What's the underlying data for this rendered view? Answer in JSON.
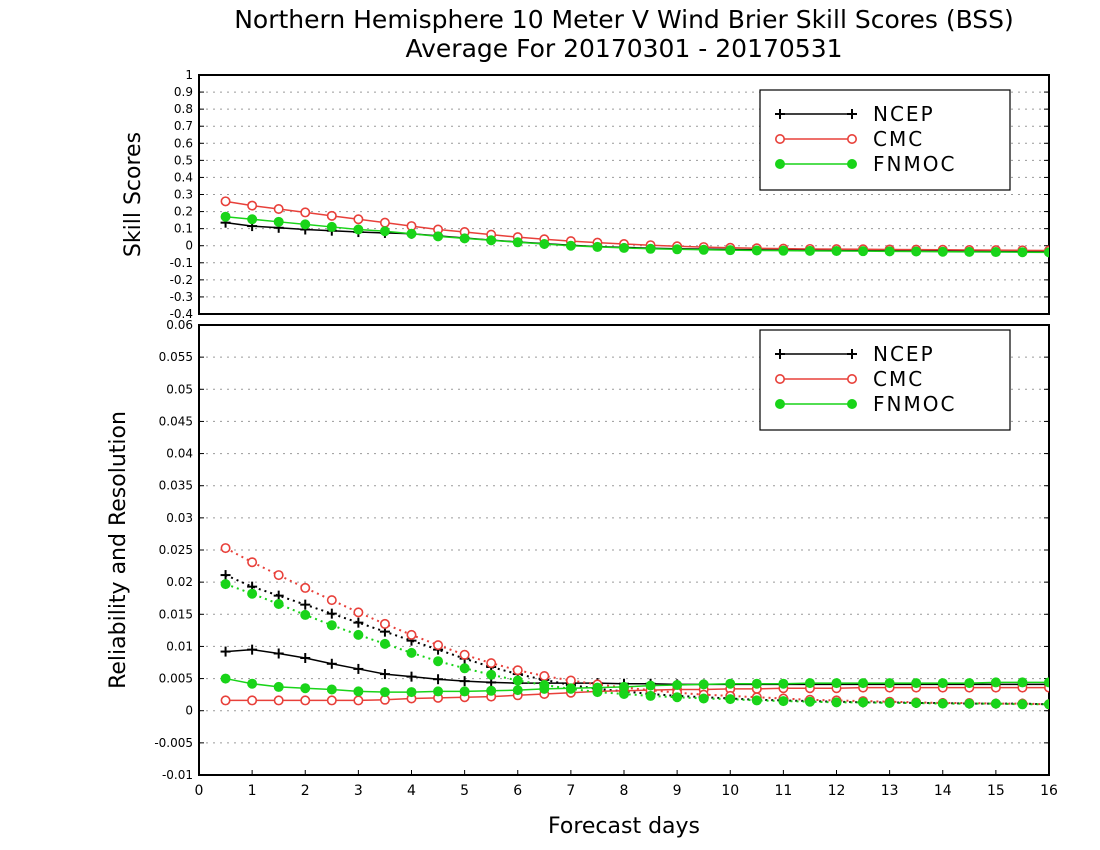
{
  "title_line1": "Northern Hemisphere 10 Meter V Wind Brier Skill Scores (BSS)",
  "title_line2": "Average For 20170301 - 20170531",
  "colors": {
    "ncep": "#000000",
    "cmc": "#e8403a",
    "fnmoc": "#19d419"
  },
  "chart_data": [
    {
      "type": "line",
      "ylabel": "Skill Scores",
      "xlabel": "",
      "xlim": [
        0,
        16
      ],
      "ylim": [
        -0.4,
        1
      ],
      "y_ticks": [
        -0.4,
        -0.3,
        -0.2,
        -0.1,
        0,
        0.1,
        0.2,
        0.3,
        0.4,
        0.5,
        0.6,
        0.7,
        0.8,
        0.9,
        1
      ],
      "y_tick_labels": [
        "-0.4",
        "-0.3",
        "-0.2",
        "-0.1",
        "0",
        "0.1",
        "0.2",
        "0.3",
        "0.4",
        "0.5",
        "0.6",
        "0.7",
        "0.8",
        "0.9",
        "1"
      ],
      "grid": true,
      "legend": {
        "placement": "top-right",
        "entries": [
          "NCEP",
          "CMC",
          "FNMOC"
        ]
      },
      "x": [
        0.5,
        1,
        1.5,
        2,
        2.5,
        3,
        3.5,
        4,
        4.5,
        5,
        5.5,
        6,
        6.5,
        7,
        7.5,
        8,
        8.5,
        9,
        9.5,
        10,
        10.5,
        11,
        11.5,
        12,
        12.5,
        13,
        13.5,
        14,
        14.5,
        15,
        15.5,
        16
      ],
      "series": [
        {
          "name": "NCEP",
          "color_key": "ncep",
          "marker": "plus",
          "style": "solid",
          "values": [
            0.135,
            0.115,
            0.105,
            0.095,
            0.088,
            0.08,
            0.075,
            0.07,
            0.058,
            0.045,
            0.033,
            0.022,
            0.012,
            0.003,
            -0.005,
            -0.01,
            -0.015,
            -0.018,
            -0.02,
            -0.022,
            -0.024,
            -0.025,
            -0.026,
            -0.027,
            -0.028,
            -0.029,
            -0.03,
            -0.031,
            -0.032,
            -0.033,
            -0.034,
            -0.035
          ]
        },
        {
          "name": "CMC",
          "color_key": "cmc",
          "marker": "open-circle",
          "style": "solid",
          "values": [
            0.26,
            0.235,
            0.215,
            0.195,
            0.175,
            0.155,
            0.135,
            0.115,
            0.095,
            0.08,
            0.065,
            0.05,
            0.038,
            0.027,
            0.018,
            0.01,
            0.003,
            -0.003,
            -0.008,
            -0.012,
            -0.015,
            -0.017,
            -0.019,
            -0.02,
            -0.021,
            -0.022,
            -0.023,
            -0.024,
            -0.025,
            -0.026,
            -0.027,
            -0.028
          ]
        },
        {
          "name": "FNMOC",
          "color_key": "fnmoc",
          "marker": "filled-circle",
          "style": "solid",
          "values": [
            0.17,
            0.155,
            0.14,
            0.125,
            0.11,
            0.095,
            0.085,
            0.07,
            0.055,
            0.043,
            0.032,
            0.02,
            0.01,
            0.0,
            -0.007,
            -0.013,
            -0.018,
            -0.021,
            -0.024,
            -0.026,
            -0.028,
            -0.029,
            -0.03,
            -0.031,
            -0.032,
            -0.033,
            -0.034,
            -0.035,
            -0.036,
            -0.037,
            -0.038,
            -0.039
          ]
        }
      ]
    },
    {
      "type": "line",
      "ylabel": "Reliability and Resolution",
      "xlabel": "Forecast days",
      "xlim": [
        0,
        16
      ],
      "ylim": [
        -0.01,
        0.06
      ],
      "y_ticks": [
        -0.01,
        -0.005,
        0,
        0.005,
        0.01,
        0.015,
        0.02,
        0.025,
        0.03,
        0.035,
        0.04,
        0.045,
        0.05,
        0.055,
        0.06
      ],
      "y_tick_labels": [
        "-0.01",
        "-0.005",
        "0",
        "0.005",
        "0.01",
        "0.015",
        "0.02",
        "0.025",
        "0.03",
        "0.035",
        "0.04",
        "0.045",
        "0.05",
        "0.055",
        "0.06"
      ],
      "x_ticks": [
        0,
        1,
        2,
        3,
        4,
        5,
        6,
        7,
        8,
        9,
        10,
        11,
        12,
        13,
        14,
        15,
        16
      ],
      "x_tick_labels": [
        "0",
        "1",
        "2",
        "3",
        "4",
        "5",
        "6",
        "7",
        "8",
        "9",
        "10",
        "11",
        "12",
        "13",
        "14",
        "15",
        "16"
      ],
      "grid": true,
      "legend": {
        "placement": "top-right",
        "entries": [
          "NCEP",
          "CMC",
          "FNMOC"
        ]
      },
      "x": [
        0.5,
        1,
        1.5,
        2,
        2.5,
        3,
        3.5,
        4,
        4.5,
        5,
        5.5,
        6,
        6.5,
        7,
        7.5,
        8,
        8.5,
        9,
        9.5,
        10,
        10.5,
        11,
        11.5,
        12,
        12.5,
        13,
        13.5,
        14,
        14.5,
        15,
        15.5,
        16
      ],
      "series": [
        {
          "name": "NCEP",
          "color_key": "ncep",
          "marker": "plus",
          "style": "solid",
          "values": [
            0.0092,
            0.0095,
            0.0089,
            0.0082,
            0.0073,
            0.0065,
            0.0057,
            0.0053,
            0.0049,
            0.0046,
            0.0044,
            0.0043,
            0.0043,
            0.0043,
            0.0043,
            0.0042,
            0.0042,
            0.0041,
            0.0041,
            0.0041,
            0.0041,
            0.0041,
            0.0041,
            0.0041,
            0.0041,
            0.0041,
            0.0041,
            0.0041,
            0.0041,
            0.0041,
            0.0041,
            0.0041
          ]
        },
        {
          "name": "NCEP",
          "color_key": "ncep",
          "marker": "plus",
          "style": "dotted",
          "values": [
            0.0211,
            0.0193,
            0.0179,
            0.0165,
            0.0151,
            0.0137,
            0.0123,
            0.0109,
            0.0095,
            0.0081,
            0.0068,
            0.0057,
            0.0048,
            0.004,
            0.0034,
            0.003,
            0.0026,
            0.0023,
            0.0021,
            0.0019,
            0.0017,
            0.0016,
            0.0015,
            0.0014,
            0.0013,
            0.0013,
            0.0012,
            0.0012,
            0.0011,
            0.0011,
            0.0011,
            0.001
          ]
        },
        {
          "name": "CMC",
          "color_key": "cmc",
          "marker": "open-circle",
          "style": "solid",
          "values": [
            0.0016,
            0.0016,
            0.0016,
            0.0016,
            0.0016,
            0.0016,
            0.0017,
            0.0019,
            0.002,
            0.0021,
            0.0022,
            0.0024,
            0.0026,
            0.0028,
            0.003,
            0.0031,
            0.0032,
            0.0033,
            0.0033,
            0.0034,
            0.0034,
            0.0035,
            0.0035,
            0.0035,
            0.0036,
            0.0036,
            0.0036,
            0.0036,
            0.0036,
            0.0036,
            0.0036,
            0.0036
          ]
        },
        {
          "name": "CMC",
          "color_key": "cmc",
          "marker": "open-circle",
          "style": "dotted",
          "values": [
            0.0253,
            0.0231,
            0.0211,
            0.0191,
            0.0172,
            0.0153,
            0.0135,
            0.0118,
            0.0102,
            0.0087,
            0.0074,
            0.0063,
            0.0054,
            0.0047,
            0.0041,
            0.0036,
            0.0032,
            0.0028,
            0.0025,
            0.0023,
            0.0021,
            0.0019,
            0.0017,
            0.0016,
            0.0015,
            0.0014,
            0.0013,
            0.0012,
            0.0012,
            0.0011,
            0.0011,
            0.001
          ]
        },
        {
          "name": "FNMOC",
          "color_key": "fnmoc",
          "marker": "filled-circle",
          "style": "solid",
          "values": [
            0.005,
            0.0042,
            0.0037,
            0.0035,
            0.0033,
            0.003,
            0.0029,
            0.0029,
            0.003,
            0.003,
            0.0031,
            0.0032,
            0.0034,
            0.0035,
            0.0036,
            0.0037,
            0.0039,
            0.004,
            0.0041,
            0.0042,
            0.0042,
            0.0042,
            0.0043,
            0.0043,
            0.0043,
            0.0043,
            0.0043,
            0.0043,
            0.0043,
            0.0044,
            0.0044,
            0.0044
          ]
        },
        {
          "name": "FNMOC",
          "color_key": "fnmoc",
          "marker": "filled-circle",
          "style": "dotted",
          "values": [
            0.0197,
            0.0182,
            0.0166,
            0.0149,
            0.0133,
            0.0118,
            0.0104,
            0.009,
            0.0077,
            0.0066,
            0.0056,
            0.0047,
            0.004,
            0.0034,
            0.0029,
            0.0026,
            0.0023,
            0.0021,
            0.0019,
            0.0018,
            0.0016,
            0.0015,
            0.0014,
            0.0013,
            0.0013,
            0.0012,
            0.0012,
            0.0011,
            0.0011,
            0.0011,
            0.001,
            0.001
          ]
        }
      ]
    }
  ]
}
